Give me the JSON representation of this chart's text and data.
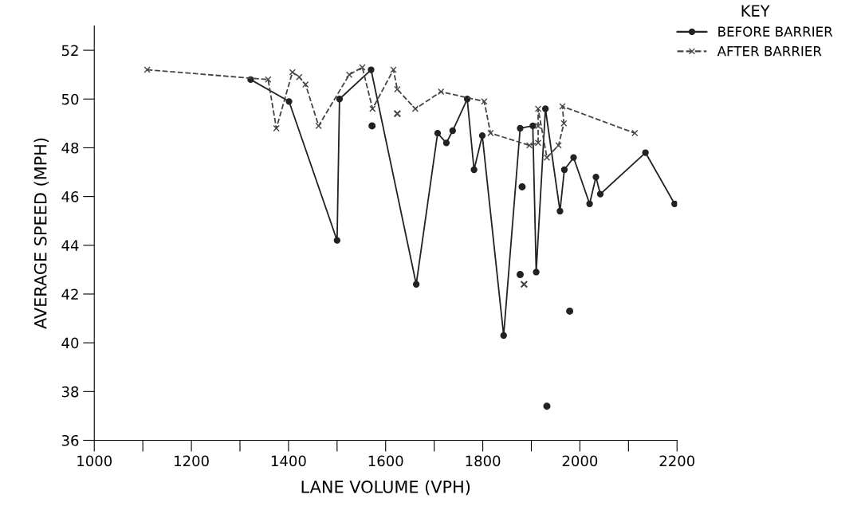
{
  "chart_data": {
    "type": "line",
    "xlabel": "LANE VOLUME (VPH)",
    "ylabel": "AVERAGE SPEED (MPH)",
    "legend_title": "KEY",
    "legend": "top right",
    "grid": false,
    "xlim": [
      1000,
      2200
    ],
    "ylim": [
      36,
      53
    ],
    "xticks": [
      1000,
      {
        "value": 1100,
        "label": null
      },
      1200,
      {
        "value": 1300,
        "label": null
      },
      1400,
      {
        "value": 1500,
        "label": null
      },
      1600,
      {
        "value": 1700,
        "label": null
      },
      1800,
      {
        "value": 1900,
        "label": null
      },
      2000,
      {
        "value": 2100,
        "label": null
      },
      2200
    ],
    "yticks": [
      36,
      38,
      40,
      42,
      44,
      46,
      48,
      50,
      52
    ],
    "series": [
      {
        "name": "BEFORE BARRIER",
        "color": "#222222",
        "marker": "circle",
        "line_style": "solid",
        "x": [
          1322,
          1401,
          1500,
          1505,
          1570,
          1663,
          1707,
          1725,
          1738,
          1768,
          1782,
          1799,
          1843,
          1877,
          1903,
          1910,
          1929,
          1959,
          1968,
          1987,
          2020,
          2033,
          2042,
          2135,
          2195
        ],
        "values": [
          50.8,
          49.9,
          44.2,
          50.0,
          51.2,
          42.4,
          48.6,
          48.2,
          48.7,
          50.0,
          47.1,
          48.5,
          40.3,
          48.8,
          48.9,
          42.9,
          49.6,
          45.4,
          47.1,
          47.6,
          45.7,
          46.8,
          46.1,
          47.8,
          45.7
        ]
      },
      {
        "name": "AFTER BARRIER",
        "color": "#444444",
        "marker": "cross",
        "line_style": "dashed",
        "x": [
          1109,
          1358,
          1375,
          1408,
          1422,
          1435,
          1462,
          1525,
          1552,
          1573,
          1616,
          1624,
          1661,
          1714,
          1803,
          1816,
          1896,
          1914,
          1914,
          1914,
          1932,
          1956,
          1967,
          1964,
          2113
        ],
        "values": [
          51.2,
          50.8,
          48.8,
          51.1,
          50.9,
          50.6,
          48.9,
          51.0,
          51.3,
          49.6,
          51.2,
          50.4,
          49.6,
          50.3,
          49.9,
          48.6,
          48.1,
          48.2,
          48.9,
          49.6,
          47.6,
          48.1,
          49.0,
          49.7,
          48.6
        ]
      },
      {
        "type": "scatter",
        "color": "#222222",
        "marker": "circle",
        "x": [
          1572,
          1881,
          1877,
          1979,
          1932
        ],
        "values": [
          48.9,
          46.4,
          42.8,
          41.3,
          37.4
        ]
      },
      {
        "type": "scatter",
        "color": "#444444",
        "marker": "cross",
        "x": [
          1624,
          1885
        ],
        "values": [
          49.4,
          42.4
        ]
      }
    ]
  }
}
